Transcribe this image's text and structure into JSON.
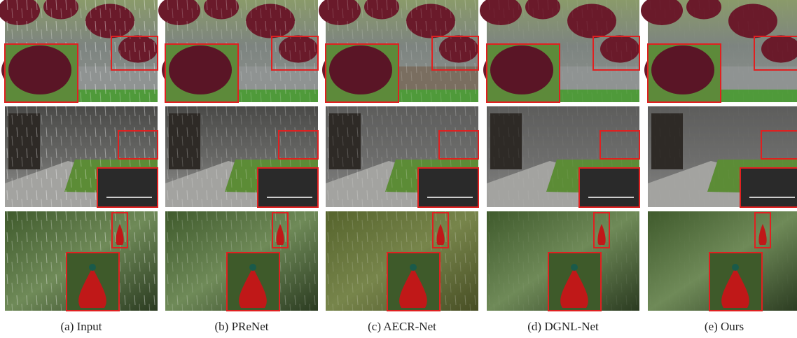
{
  "figure": {
    "captions": [
      "(a) Input",
      "(b) PReNet",
      "(c) AECR-Net",
      "(d) DGNL-Net",
      "(e) Ours"
    ]
  }
}
